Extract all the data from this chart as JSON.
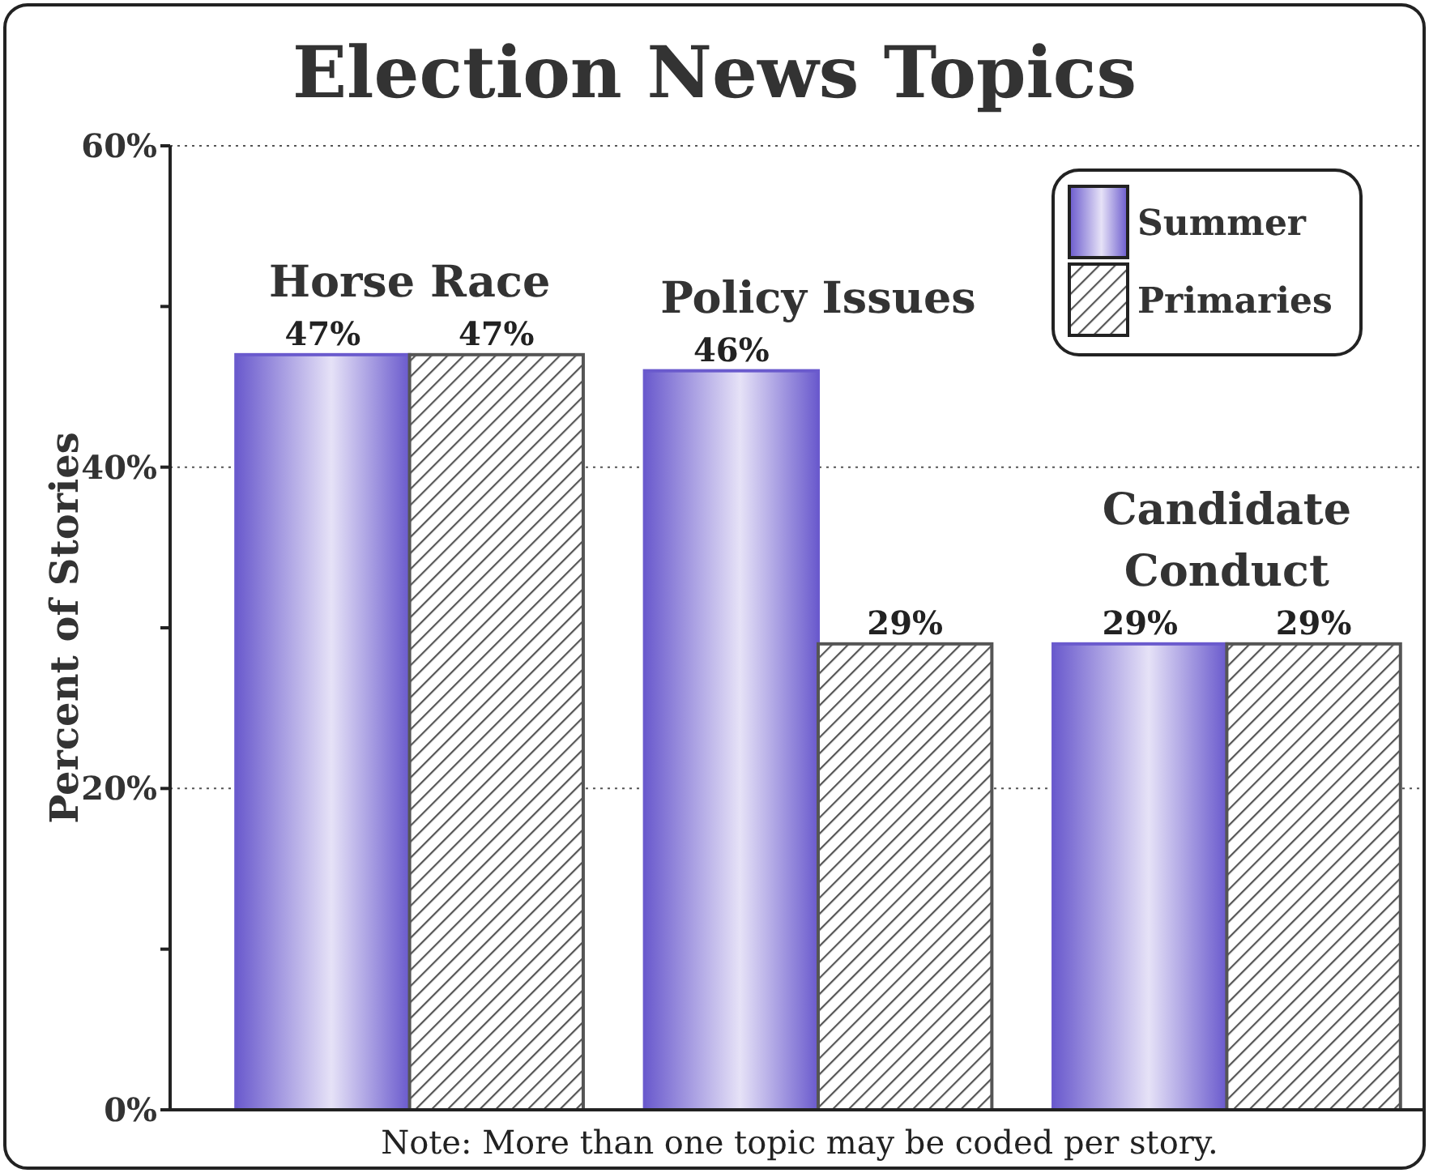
{
  "chart_data": {
    "type": "bar",
    "title": "Election News Topics",
    "ylabel": "Percent of Stories",
    "categories": [
      "Horse Race",
      "Policy Issues",
      "Candidate Conduct"
    ],
    "series": [
      {
        "name": "Summer",
        "color": "#6a5acd",
        "values": [
          47,
          46,
          29
        ],
        "value_labels": [
          "47%",
          "46%",
          "29%"
        ]
      },
      {
        "name": "Primaries",
        "color": "#555555",
        "values": [
          47,
          29,
          29
        ],
        "value_labels": [
          "47%",
          "29%",
          "29%"
        ]
      }
    ],
    "ylim": [
      0,
      60
    ],
    "yticks": [
      {
        "value": 0,
        "label": "0%"
      },
      {
        "value": 10,
        "label": null
      },
      {
        "value": 20,
        "label": "20%"
      },
      {
        "value": 30,
        "label": null
      },
      {
        "value": 40,
        "label": "40%"
      },
      {
        "value": 50,
        "label": null
      },
      {
        "value": 60,
        "label": "60%"
      }
    ],
    "grid": "y",
    "legend": "top right",
    "annotations": [
      "Note:  More than one topic may be coded per story."
    ]
  }
}
